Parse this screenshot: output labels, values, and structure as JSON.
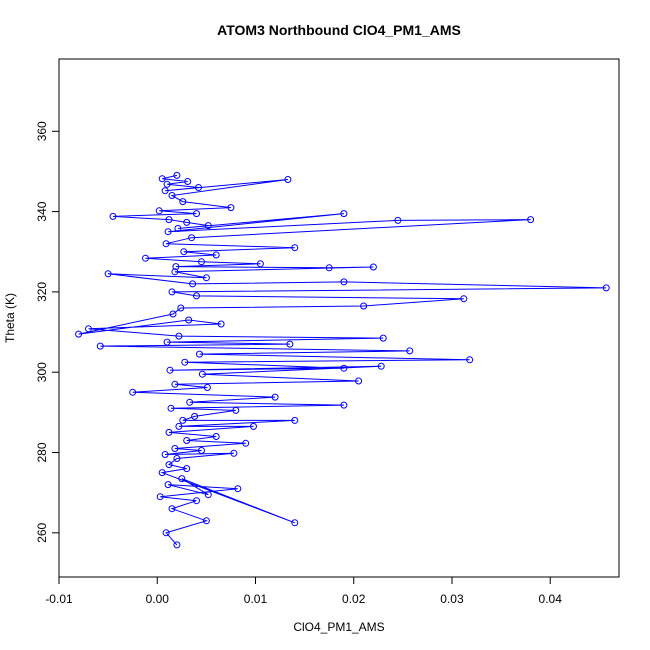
{
  "chart_data": {
    "type": "scatter",
    "title": "ATOM3 Northbound ClO4_PM1_AMS",
    "xlabel": "ClO4_PM1_AMS",
    "ylabel": "Theta (K)",
    "xlim": [
      -0.01,
      0.047
    ],
    "ylim": [
      249,
      378
    ],
    "x_ticks": [
      -0.01,
      0.0,
      0.01,
      0.02,
      0.03,
      0.04
    ],
    "x_tick_labels": [
      "-0.01",
      "0.00",
      "0.01",
      "0.02",
      "0.03",
      "0.04"
    ],
    "y_ticks": [
      260,
      280,
      300,
      320,
      340,
      360
    ],
    "y_tick_labels": [
      "260",
      "280",
      "300",
      "320",
      "340",
      "360"
    ],
    "grid": false,
    "connected": true,
    "marker": "open-circle",
    "color": "#0000ff",
    "series": [
      {
        "points_note": "",
        "x": [
          0.002,
          0.0005,
          0.0031,
          0.001,
          0.0042,
          0.0008,
          0.0133,
          0.0015,
          0.0026,
          0.0075,
          0.0002,
          0.004,
          -0.0045,
          0.0012,
          0.003,
          0.0052,
          0.0021,
          0.019,
          0.0011,
          0.0245,
          0.038,
          0.0035,
          0.0009,
          0.014,
          0.0027,
          0.006,
          -0.0012,
          0.0045,
          0.0105,
          0.0019,
          0.0175,
          0.022,
          0.0018,
          0.005,
          -0.005,
          0.0036,
          0.019,
          0.0457,
          0.0015,
          0.004,
          0.0312,
          0.021,
          0.0024,
          0.0016,
          -0.008,
          0.0032,
          0.0065,
          -0.007,
          0.0022,
          0.023,
          0.001,
          0.0135,
          -0.0058,
          0.0257,
          0.0043,
          0.0318,
          0.0028,
          0.019,
          0.0013,
          0.0228,
          0.0046,
          0.0205,
          0.0018,
          0.0051,
          -0.0025,
          0.012,
          0.0033,
          0.019,
          0.0014,
          0.008,
          0.0038,
          0.0026,
          0.014,
          0.0022,
          0.0098,
          0.0012,
          0.006,
          0.003,
          0.009,
          0.0018,
          0.0045,
          0.0008,
          0.0078,
          0.002,
          0.0012,
          0.003,
          0.0005,
          0.014,
          0.0025,
          0.0052,
          0.0011,
          0.0082,
          0.0003,
          0.004,
          0.0015,
          0.005,
          0.0009,
          0.002
        ],
        "y": [
          349.0,
          348.2,
          347.5,
          346.8,
          346.0,
          345.2,
          348.0,
          344.0,
          342.5,
          341.0,
          340.2,
          339.5,
          338.8,
          338.0,
          337.3,
          336.5,
          335.8,
          339.5,
          335.0,
          337.8,
          338.0,
          333.5,
          332.0,
          331.0,
          330.0,
          329.2,
          328.4,
          327.5,
          327.0,
          326.3,
          326.0,
          326.2,
          325.0,
          323.5,
          324.5,
          322.0,
          322.5,
          321.0,
          320.0,
          319.0,
          318.3,
          316.5,
          316.0,
          314.5,
          309.5,
          313.0,
          312.0,
          310.8,
          309.0,
          308.5,
          307.5,
          307.0,
          306.5,
          305.3,
          304.5,
          303.1,
          302.5,
          301.0,
          300.5,
          301.5,
          299.5,
          297.8,
          297.0,
          296.2,
          295.0,
          293.8,
          292.5,
          291.8,
          291.0,
          290.5,
          289.0,
          288.0,
          288.0,
          286.5,
          286.5,
          285.0,
          284.0,
          283.0,
          282.3,
          281.0,
          280.5,
          279.5,
          279.8,
          278.5,
          277.0,
          276.0,
          275.0,
          262.5,
          273.5,
          269.5,
          272.0,
          271.0,
          269.0,
          268.0,
          266.0,
          263.0,
          260.0,
          257.0
        ]
      }
    ]
  }
}
